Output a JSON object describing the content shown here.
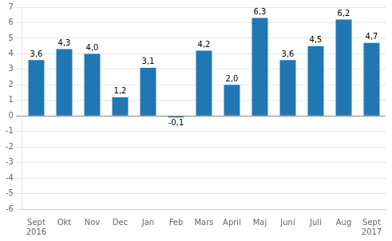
{
  "chart_data": {
    "type": "bar",
    "categories": [
      "Sept",
      "Okt",
      "Nov",
      "Dec",
      "Jan",
      "Feb",
      "Mars",
      "April",
      "Maj",
      "Juni",
      "Juli",
      "Aug",
      "Sept"
    ],
    "values": [
      3.6,
      4.3,
      4.0,
      1.2,
      3.1,
      -0.1,
      4.2,
      2.0,
      6.3,
      3.6,
      4.5,
      6.2,
      4.7
    ],
    "value_labels": [
      "3,6",
      "4,3",
      "4,0",
      "1,2",
      "3,1",
      "-0,1",
      "4,2",
      "2,0",
      "6,3",
      "3,6",
      "4,5",
      "6,2",
      "4,7"
    ],
    "data_labels": true,
    "color": "#2077b4",
    "ylim": [
      -6,
      7
    ],
    "yticks": [
      -6,
      -5,
      -4,
      -3,
      -2,
      -1,
      0,
      1,
      2,
      3,
      4,
      5,
      6,
      7
    ],
    "grid": true,
    "annotations": [
      {
        "text": "2016",
        "index": 0
      },
      {
        "text": "2017",
        "index": 12
      }
    ]
  }
}
